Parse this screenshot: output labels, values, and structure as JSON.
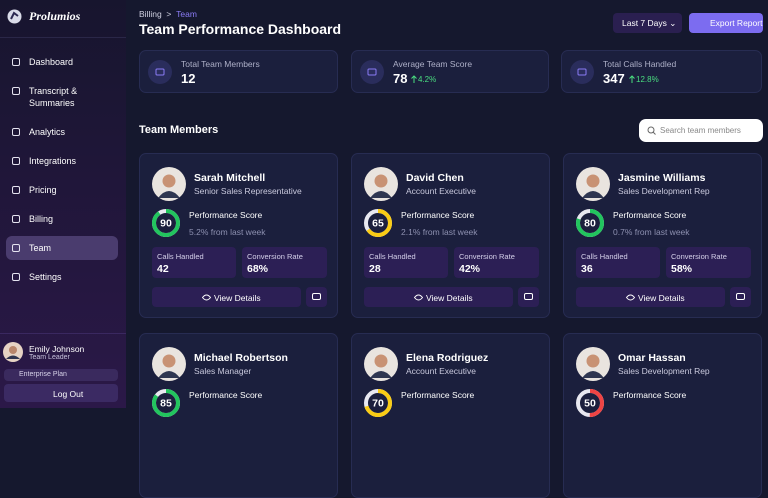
{
  "sidebar": {
    "brand": "Prolumios",
    "nav": [
      "Dashboard",
      "Transcript & Summaries",
      "Analytics",
      "Integrations",
      "Pricing",
      "Billing",
      "Team",
      "Settings"
    ],
    "active": 6,
    "user": {
      "name": "Emily Johnson",
      "role": "Team Leader",
      "plan": "Enterprise Plan"
    },
    "logout": "Log Out"
  },
  "header": {
    "breadcrumb": [
      "Billing",
      ">",
      "Team"
    ],
    "title": "Team Performance Dashboard",
    "range": "Last 7 Days",
    "export": "Export Report"
  },
  "stats": [
    {
      "label": "Total Team Members",
      "value": 12
    },
    {
      "label": "Average Team Score",
      "value": 78,
      "change": "4.2%"
    },
    {
      "label": "Total Calls Handled",
      "value": 347,
      "change": "12.8%"
    }
  ],
  "team": {
    "title": "Team Members",
    "search_placeholder": "Search team members",
    "score_label": "Performance Score",
    "calls_label": "Calls Handled",
    "conversion_label": "Conversion Rate",
    "details_label": "View Details",
    "members": [
      {
        "name": "Sarah Mitchell",
        "role": "Senior Sales Representative",
        "score": 90,
        "color": "#22c55e",
        "change": "5.2% from last week",
        "calls": 42,
        "conversion": "68%"
      },
      {
        "name": "David Chen",
        "role": "Account Executive",
        "score": 65,
        "color": "#facc15",
        "change": "2.1% from last week",
        "calls": 28,
        "conversion": "42%"
      },
      {
        "name": "Jasmine Williams",
        "role": "Sales Development Rep",
        "score": 80,
        "color": "#22c55e",
        "change": "0.7% from last week",
        "calls": 36,
        "conversion": "58%"
      },
      {
        "name": "Michael Robertson",
        "role": "Sales Manager",
        "score": 85,
        "color": "#22c55e"
      },
      {
        "name": "Elena Rodriguez",
        "role": "Account Executive",
        "score": 70,
        "color": "#facc15"
      },
      {
        "name": "Omar Hassan",
        "role": "Sales Development Rep",
        "score": 50,
        "color": "#ef4444"
      }
    ]
  }
}
